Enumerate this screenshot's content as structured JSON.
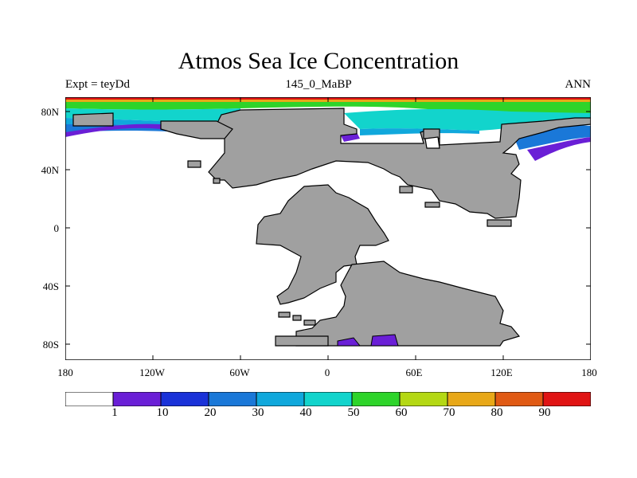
{
  "title": "Atmos Sea Ice Concentration",
  "subtitle_left": "Expt = teyDd",
  "subtitle_center": "145_0_MaBP",
  "subtitle_right": "ANN",
  "y_ticks": [
    "80N",
    "40N",
    "0",
    "40S",
    "80S"
  ],
  "x_ticks": [
    "180",
    "120W",
    "60W",
    "0",
    "60E",
    "120E",
    "180"
  ],
  "legend": {
    "labels": [
      "1",
      "10",
      "20",
      "30",
      "40",
      "50",
      "60",
      "70",
      "80",
      "90"
    ],
    "colors": [
      "#ffffff",
      "#6a1fd6",
      "#1a32d8",
      "#1a78d8",
      "#10a8dc",
      "#12d4cc",
      "#2ed42a",
      "#b4d814",
      "#e8a818",
      "#e05a14",
      "#e01414"
    ]
  },
  "colors": {
    "land": "#a0a0a0",
    "ocean": "#ffffff",
    "coastline": "#000000"
  }
}
